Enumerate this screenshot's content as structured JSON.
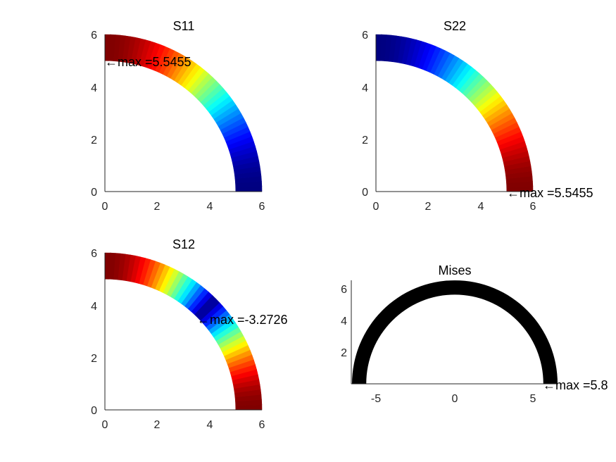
{
  "chart_data": [
    {
      "type": "contour",
      "title": "S11",
      "xlabel": "",
      "ylabel": "",
      "xlim": [
        0,
        6
      ],
      "ylim": [
        0,
        6
      ],
      "xticks": [
        "0",
        "2",
        "4",
        "6"
      ],
      "yticks": [
        "0",
        "2",
        "4",
        "6"
      ],
      "geometry": {
        "shape": "quarter-annulus",
        "inner_radius": 5,
        "outer_radius": 6
      },
      "colormap": "jet",
      "field": "cos2",
      "annotation": {
        "text": "←max =5.5455",
        "x": 0,
        "y": 5
      }
    },
    {
      "type": "contour",
      "title": "S22",
      "xlabel": "",
      "ylabel": "",
      "xlim": [
        0,
        6
      ],
      "ylim": [
        0,
        6
      ],
      "xticks": [
        "0",
        "2",
        "4",
        "6"
      ],
      "yticks": [
        "0",
        "2",
        "4",
        "6"
      ],
      "geometry": {
        "shape": "quarter-annulus",
        "inner_radius": 5,
        "outer_radius": 6
      },
      "colormap": "jet",
      "field": "sin2",
      "annotation": {
        "text": "←max =5.5455",
        "x": 5,
        "y": 0
      }
    },
    {
      "type": "contour",
      "title": "S12",
      "xlabel": "",
      "ylabel": "",
      "xlim": [
        0,
        6
      ],
      "ylim": [
        0,
        6
      ],
      "xticks": [
        "0",
        "2",
        "4",
        "6"
      ],
      "yticks": [
        "0",
        "2",
        "4",
        "6"
      ],
      "geometry": {
        "shape": "quarter-annulus",
        "inner_radius": 5,
        "outer_radius": 6
      },
      "colormap": "jet",
      "field": "abs-cos2",
      "annotation": {
        "text": "←max =-3.2726",
        "x": 3.535,
        "y": 3.535
      }
    },
    {
      "type": "mesh",
      "title": "Mises",
      "xlabel": "",
      "ylabel": "",
      "xlim": [
        -6.5,
        6.5
      ],
      "ylim": [
        0,
        6.5
      ],
      "xticks": [
        "-5",
        "0",
        "5"
      ],
      "xtick_values": [
        -5,
        0,
        5
      ],
      "yticks": [
        "2",
        "4",
        "6"
      ],
      "ytick_values": [
        2,
        4,
        6
      ],
      "geometry": {
        "shape": "half-annulus",
        "inner_radius": 5.6,
        "outer_radius": 6.5
      },
      "color": "#000000",
      "annotation": {
        "text": "←max =5.8",
        "x": 5.6,
        "y": 0
      }
    }
  ]
}
